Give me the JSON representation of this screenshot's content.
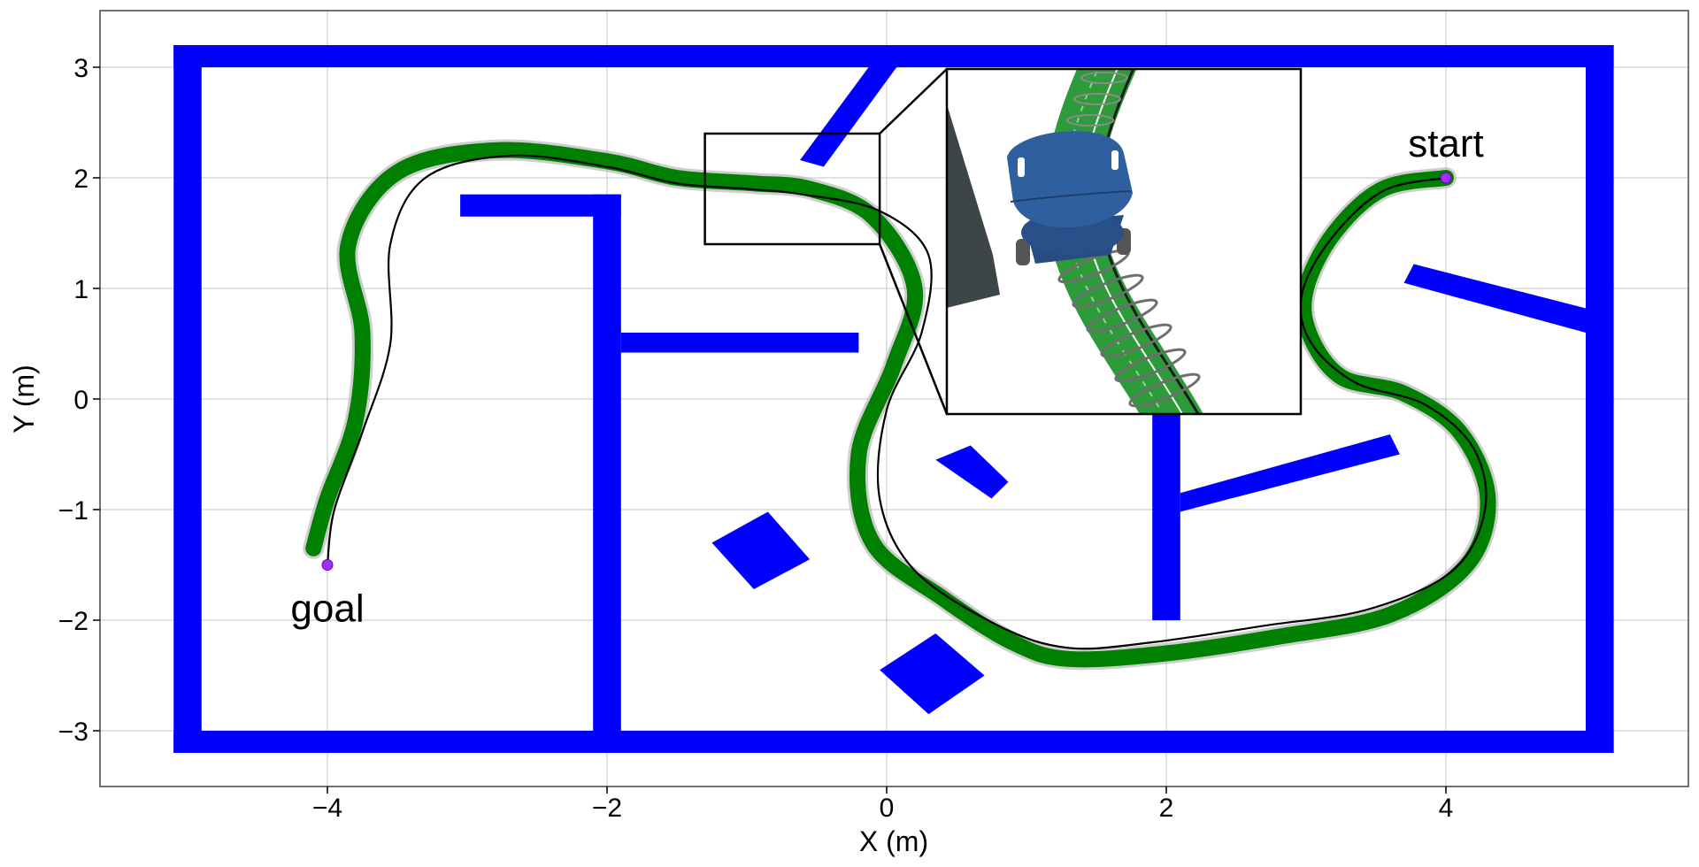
{
  "chart_data": {
    "type": "line",
    "title": "",
    "xlabel": "X (m)",
    "ylabel": "Y (m)",
    "xlim": [
      -5.6,
      5.6
    ],
    "ylim": [
      -3.5,
      3.5
    ],
    "xticks": [
      -4,
      -2,
      0,
      2,
      4
    ],
    "yticks": [
      -3,
      -2,
      -1,
      0,
      1,
      2,
      3
    ],
    "xtick_labels": [
      "−4",
      "−2",
      "0",
      "2",
      "4"
    ],
    "ytick_labels": [
      "−3",
      "−2",
      "−1",
      "0",
      "1",
      "2",
      "3"
    ],
    "grid": true,
    "colors": {
      "obstacle": "#0000ff",
      "executed_path": "#008000",
      "reference_path": "#000000",
      "endpoint": "#9b30ff",
      "robot_body": "#2f5f9e"
    },
    "obstacles": [
      {
        "points": [
          [
            -5.1,
            3.2
          ],
          [
            5.2,
            3.2
          ],
          [
            5.2,
            3.0
          ],
          [
            -5.1,
            3.0
          ]
        ]
      },
      {
        "points": [
          [
            -5.1,
            -3.0
          ],
          [
            5.2,
            -3.0
          ],
          [
            5.2,
            -3.2
          ],
          [
            -5.1,
            -3.2
          ]
        ]
      },
      {
        "points": [
          [
            -5.1,
            3.2
          ],
          [
            -4.9,
            3.2
          ],
          [
            -4.9,
            -3.2
          ],
          [
            -5.1,
            -3.2
          ]
        ]
      },
      {
        "points": [
          [
            5.0,
            3.2
          ],
          [
            5.2,
            3.2
          ],
          [
            5.2,
            -3.2
          ],
          [
            5.0,
            -3.2
          ]
        ]
      },
      {
        "points": [
          [
            -3.05,
            1.85
          ],
          [
            -1.9,
            1.85
          ],
          [
            -1.9,
            1.65
          ],
          [
            -3.05,
            1.65
          ]
        ]
      },
      {
        "points": [
          [
            -2.1,
            1.85
          ],
          [
            -1.9,
            1.85
          ],
          [
            -1.9,
            -3.0
          ],
          [
            -2.1,
            -3.0
          ]
        ]
      },
      {
        "points": [
          [
            -1.9,
            0.6
          ],
          [
            -0.2,
            0.6
          ],
          [
            -0.2,
            0.42
          ],
          [
            -1.9,
            0.42
          ]
        ]
      },
      {
        "points": [
          [
            -0.1,
            3.05
          ],
          [
            0.1,
            3.05
          ],
          [
            -0.45,
            2.1
          ],
          [
            -0.62,
            2.16
          ]
        ]
      },
      {
        "points": [
          [
            1.9,
            0.2
          ],
          [
            2.1,
            0.2
          ],
          [
            2.1,
            -2.0
          ],
          [
            1.9,
            -2.0
          ]
        ]
      },
      {
        "points": [
          [
            2.1,
            -0.85
          ],
          [
            3.6,
            -0.32
          ],
          [
            3.67,
            -0.5
          ],
          [
            2.1,
            -1.02
          ]
        ]
      },
      {
        "points": [
          [
            3.77,
            1.22
          ],
          [
            5.0,
            0.82
          ],
          [
            5.0,
            0.6
          ],
          [
            3.7,
            1.05
          ]
        ]
      },
      {
        "points": [
          [
            0.35,
            -0.55
          ],
          [
            0.6,
            -0.42
          ],
          [
            0.87,
            -0.75
          ],
          [
            0.75,
            -0.9
          ]
        ]
      },
      {
        "points": [
          [
            -1.25,
            -1.3
          ],
          [
            -0.85,
            -1.02
          ],
          [
            -0.55,
            -1.45
          ],
          [
            -0.95,
            -1.72
          ]
        ]
      },
      {
        "points": [
          [
            -0.05,
            -2.45
          ],
          [
            0.35,
            -2.12
          ],
          [
            0.7,
            -2.5
          ],
          [
            0.3,
            -2.85
          ]
        ]
      }
    ],
    "series": [
      {
        "points": [
          [
            4.0,
            2.0
          ],
          [
            3.55,
            1.9
          ],
          [
            3.2,
            1.5
          ],
          [
            3.0,
            1.0
          ],
          [
            3.02,
            0.6
          ],
          [
            3.25,
            0.2
          ],
          [
            3.7,
            0.05
          ],
          [
            4.1,
            -0.3
          ],
          [
            4.3,
            -0.9
          ],
          [
            4.15,
            -1.5
          ],
          [
            3.6,
            -1.95
          ],
          [
            2.8,
            -2.15
          ],
          [
            2.0,
            -2.3
          ],
          [
            1.3,
            -2.35
          ],
          [
            0.9,
            -2.2
          ],
          [
            0.4,
            -1.8
          ],
          [
            -0.1,
            -1.3
          ],
          [
            -0.2,
            -0.5
          ],
          [
            0.05,
            0.3
          ],
          [
            0.2,
            1.0
          ],
          [
            -0.1,
            1.65
          ],
          [
            -0.55,
            1.9
          ],
          [
            -0.95,
            1.95
          ],
          [
            -1.5,
            2.0
          ],
          [
            -2.0,
            2.15
          ],
          [
            -2.8,
            2.25
          ],
          [
            -3.5,
            2.05
          ],
          [
            -3.85,
            1.4
          ],
          [
            -3.75,
            0.6
          ],
          [
            -3.8,
            -0.2
          ],
          [
            -4.0,
            -0.9
          ],
          [
            -4.1,
            -1.35
          ]
        ]
      },
      {
        "points": [
          [
            4.0,
            2.0
          ],
          [
            3.55,
            1.88
          ],
          [
            3.18,
            1.45
          ],
          [
            2.97,
            0.95
          ],
          [
            3.03,
            0.52
          ],
          [
            3.35,
            0.15
          ],
          [
            3.85,
            -0.05
          ],
          [
            4.2,
            -0.45
          ],
          [
            4.28,
            -1.0
          ],
          [
            4.05,
            -1.55
          ],
          [
            3.45,
            -1.9
          ],
          [
            2.7,
            -2.05
          ],
          [
            1.9,
            -2.2
          ],
          [
            1.3,
            -2.25
          ],
          [
            0.8,
            -2.05
          ],
          [
            0.2,
            -1.55
          ],
          [
            -0.05,
            -0.9
          ],
          [
            0.0,
            -0.1
          ],
          [
            0.25,
            0.6
          ],
          [
            0.3,
            1.3
          ],
          [
            -0.05,
            1.7
          ],
          [
            -0.6,
            1.85
          ],
          [
            -1.0,
            1.9
          ],
          [
            -1.5,
            1.95
          ],
          [
            -2.0,
            2.1
          ],
          [
            -2.7,
            2.2
          ],
          [
            -3.3,
            2.0
          ],
          [
            -3.55,
            1.4
          ],
          [
            -3.55,
            0.5
          ],
          [
            -3.75,
            -0.3
          ],
          [
            -3.95,
            -1.0
          ],
          [
            -4.0,
            -1.5
          ]
        ]
      }
    ],
    "markers": [
      {
        "x": 4.0,
        "y": 2.0,
        "label": "start"
      },
      {
        "x": -4.0,
        "y": -1.5,
        "label": "goal"
      }
    ],
    "inset": {
      "zoom_region": {
        "x": [
          -1.3,
          -0.05
        ],
        "y": [
          1.4,
          2.4
        ]
      }
    }
  }
}
